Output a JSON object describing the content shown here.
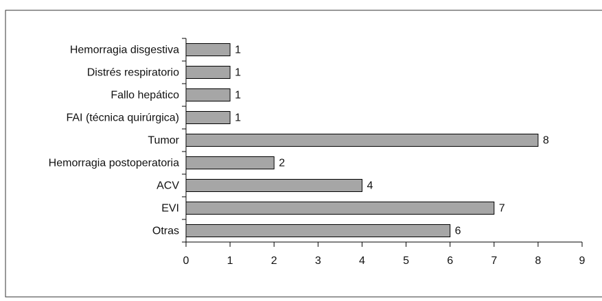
{
  "chart_data": {
    "type": "bar",
    "orientation": "horizontal",
    "categories": [
      "Hemorragia disgestiva",
      "Distrés respiratorio",
      "Fallo hepático",
      "FAI (técnica quirúrgica)",
      "Tumor",
      "Hemorragia postoperatoria",
      "ACV",
      "EVI",
      "Otras"
    ],
    "values": [
      1,
      1,
      1,
      1,
      8,
      2,
      4,
      7,
      6
    ],
    "color": "#a6a6a6",
    "xlim": [
      0,
      9
    ],
    "xticks": [
      0,
      1,
      2,
      3,
      4,
      5,
      6,
      7,
      8,
      9
    ]
  }
}
